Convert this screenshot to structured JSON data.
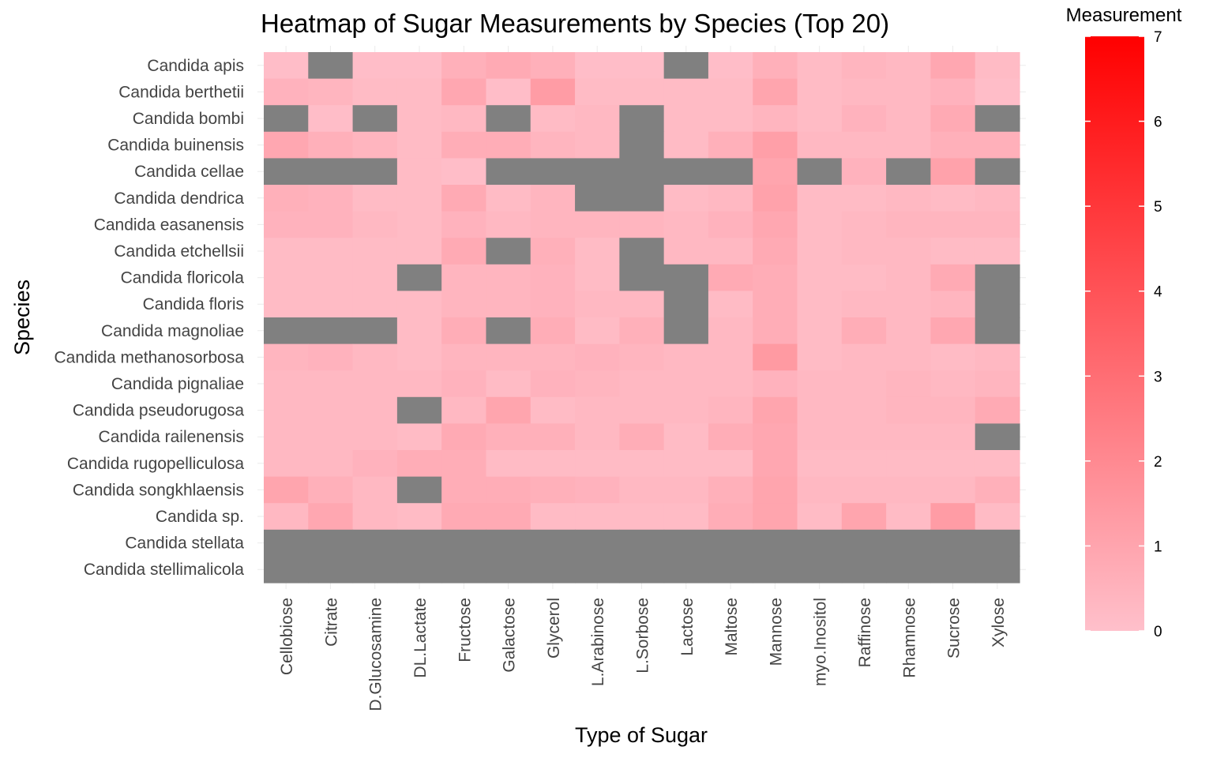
{
  "chart_data": {
    "type": "heatmap",
    "title": "Heatmap of Sugar Measurements by Species (Top 20)",
    "xlabel": "Type of Sugar",
    "ylabel": "Species",
    "x_categories": [
      "Cellobiose",
      "Citrate",
      "D.Glucosamine",
      "DL.Lactate",
      "Fructose",
      "Galactose",
      "Glycerol",
      "L.Arabinose",
      "L.Sorbose",
      "Lactose",
      "Maltose",
      "Mannose",
      "myo.Inositol",
      "Raffinose",
      "Rhamnose",
      "Sucrose",
      "Xylose"
    ],
    "y_categories": [
      "Candida apis",
      "Candida berthetii",
      "Candida bombi",
      "Candida buinensis",
      "Candida cellae",
      "Candida dendrica",
      "Candida easanensis",
      "Candida etchellsii",
      "Candida floricola",
      "Candida floris",
      "Candida magnoliae",
      "Candida methanosorbosa",
      "Candida pignaliae",
      "Candida pseudorugosa",
      "Candida railenensis",
      "Candida rugopelliculosa",
      "Candida songkhlaensis",
      "Candida sp.",
      "Candida stellata",
      "Candida stellimalicola"
    ],
    "values": [
      [
        0.1,
        null,
        0.1,
        0.1,
        0.6,
        0.8,
        0.6,
        0.1,
        0.1,
        null,
        0.1,
        0.6,
        0.2,
        0.4,
        0.3,
        0.9,
        0.2
      ],
      [
        0.5,
        0.4,
        0.2,
        0.2,
        0.9,
        0.1,
        1.3,
        0.2,
        0.2,
        0.2,
        0.2,
        1.0,
        0.2,
        0.3,
        0.3,
        0.5,
        0.1
      ],
      [
        null,
        0.1,
        null,
        0.2,
        0.3,
        null,
        0.2,
        0.3,
        null,
        0.2,
        0.2,
        0.4,
        0.2,
        0.5,
        0.3,
        0.8,
        null
      ],
      [
        0.9,
        0.6,
        0.4,
        0.2,
        0.7,
        0.7,
        0.4,
        0.3,
        null,
        0.2,
        0.6,
        1.2,
        0.3,
        0.3,
        0.3,
        0.6,
        0.6
      ],
      [
        null,
        null,
        null,
        0.2,
        0.1,
        null,
        null,
        null,
        null,
        null,
        null,
        1.0,
        null,
        0.5,
        null,
        1.1,
        null
      ],
      [
        0.6,
        0.5,
        0.2,
        0.2,
        0.8,
        0.2,
        0.4,
        null,
        null,
        0.2,
        0.3,
        1.1,
        0.2,
        0.2,
        0.3,
        0.2,
        0.3
      ],
      [
        0.5,
        0.5,
        0.3,
        0.2,
        0.5,
        0.3,
        0.4,
        0.4,
        0.4,
        0.3,
        0.5,
        0.9,
        0.2,
        0.3,
        0.4,
        0.4,
        0.4
      ],
      [
        0.2,
        0.2,
        0.2,
        0.2,
        0.8,
        null,
        0.6,
        0.2,
        null,
        0.3,
        0.3,
        0.8,
        0.2,
        0.3,
        0.3,
        0.2,
        0.2
      ],
      [
        0.2,
        0.2,
        0.2,
        null,
        0.4,
        0.4,
        0.5,
        0.2,
        null,
        null,
        0.8,
        0.7,
        0.2,
        0.2,
        0.3,
        0.8,
        null
      ],
      [
        0.2,
        0.2,
        0.2,
        0.2,
        0.4,
        0.4,
        0.5,
        0.3,
        0.3,
        null,
        0.2,
        0.7,
        0.2,
        0.3,
        0.3,
        0.4,
        null
      ],
      [
        null,
        null,
        null,
        0.2,
        0.7,
        null,
        0.7,
        0.2,
        0.6,
        null,
        0.3,
        0.7,
        0.2,
        0.7,
        0.3,
        0.9,
        null
      ],
      [
        0.4,
        0.5,
        0.3,
        0.2,
        0.4,
        0.4,
        0.4,
        0.5,
        0.4,
        0.3,
        0.3,
        1.4,
        0.2,
        0.3,
        0.3,
        0.2,
        0.3
      ],
      [
        0.3,
        0.3,
        0.3,
        0.3,
        0.5,
        0.2,
        0.5,
        0.4,
        0.3,
        0.3,
        0.3,
        0.5,
        0.3,
        0.3,
        0.4,
        0.3,
        0.4
      ],
      [
        0.3,
        0.3,
        0.3,
        null,
        0.3,
        1.0,
        0.2,
        0.3,
        0.3,
        0.3,
        0.4,
        1.0,
        0.3,
        0.3,
        0.4,
        0.4,
        0.8
      ],
      [
        0.3,
        0.3,
        0.3,
        0.2,
        0.8,
        0.6,
        0.6,
        0.3,
        0.7,
        0.2,
        0.7,
        0.9,
        0.3,
        0.3,
        0.3,
        0.3,
        null
      ],
      [
        0.3,
        0.3,
        0.5,
        0.7,
        0.7,
        0.2,
        0.2,
        0.2,
        0.2,
        0.2,
        0.2,
        0.9,
        0.2,
        0.2,
        0.2,
        0.2,
        0.2
      ],
      [
        1.0,
        0.6,
        0.3,
        null,
        0.7,
        0.7,
        0.6,
        0.5,
        0.3,
        0.3,
        0.6,
        1.0,
        0.3,
        0.3,
        0.3,
        0.3,
        0.6
      ],
      [
        0.3,
        0.9,
        0.3,
        0.2,
        0.8,
        0.8,
        0.2,
        0.2,
        0.2,
        0.2,
        0.7,
        1.0,
        0.2,
        1.0,
        0.2,
        1.3,
        0.2
      ],
      [
        null,
        null,
        null,
        null,
        null,
        null,
        null,
        null,
        null,
        null,
        null,
        null,
        null,
        null,
        null,
        null,
        null
      ],
      [
        null,
        null,
        null,
        null,
        null,
        null,
        null,
        null,
        null,
        null,
        null,
        null,
        null,
        null,
        null,
        null,
        null
      ]
    ],
    "missing_color": "#808080",
    "color_scale": {
      "low": "#FFC0CB",
      "high": "#FF0000",
      "min": 0,
      "max": 7
    },
    "legend": {
      "title": "Measurement",
      "ticks": [
        0,
        1,
        2,
        3,
        4,
        5,
        6,
        7
      ],
      "position": "right"
    },
    "grid": true
  }
}
